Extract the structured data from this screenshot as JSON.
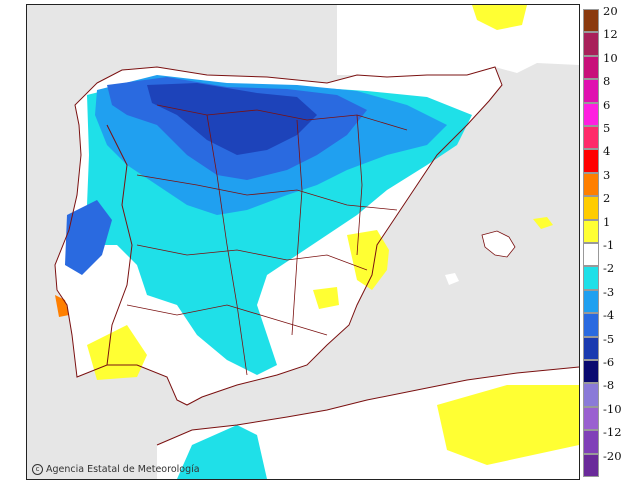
{
  "credit": {
    "text": "Agencia Estatal de Meteorología",
    "icon": "copyright-icon"
  },
  "legend": {
    "items": [
      {
        "label": "20",
        "color": "#8b3a0e"
      },
      {
        "label": "12",
        "color": "#a8215a"
      },
      {
        "label": "10",
        "color": "#c8107a"
      },
      {
        "label": "8",
        "color": "#e010b0"
      },
      {
        "label": "6",
        "color": "#ff1fe0"
      },
      {
        "label": "5",
        "color": "#ff2a6a"
      },
      {
        "label": "4",
        "color": "#ff0000"
      },
      {
        "label": "3",
        "color": "#ff7f00"
      },
      {
        "label": "2",
        "color": "#ffcc00"
      },
      {
        "label": "1",
        "color": "#ffff33"
      },
      {
        "label": "-1",
        "color": "#ffffff"
      },
      {
        "label": "-2",
        "color": "#1fe0e8"
      },
      {
        "label": "-3",
        "color": "#20a0f0"
      },
      {
        "label": "-4",
        "color": "#2a6ae0"
      },
      {
        "label": "-5",
        "color": "#1a3ab0"
      },
      {
        "label": "-6",
        "color": "#0a0a70"
      },
      {
        "label": "-8",
        "color": "#8a7ad8"
      },
      {
        "label": "-10",
        "color": "#9a60d0"
      },
      {
        "label": "-12",
        "color": "#8040b8"
      },
      {
        "label": "-20",
        "color": "#6a2a9a"
      }
    ]
  }
}
